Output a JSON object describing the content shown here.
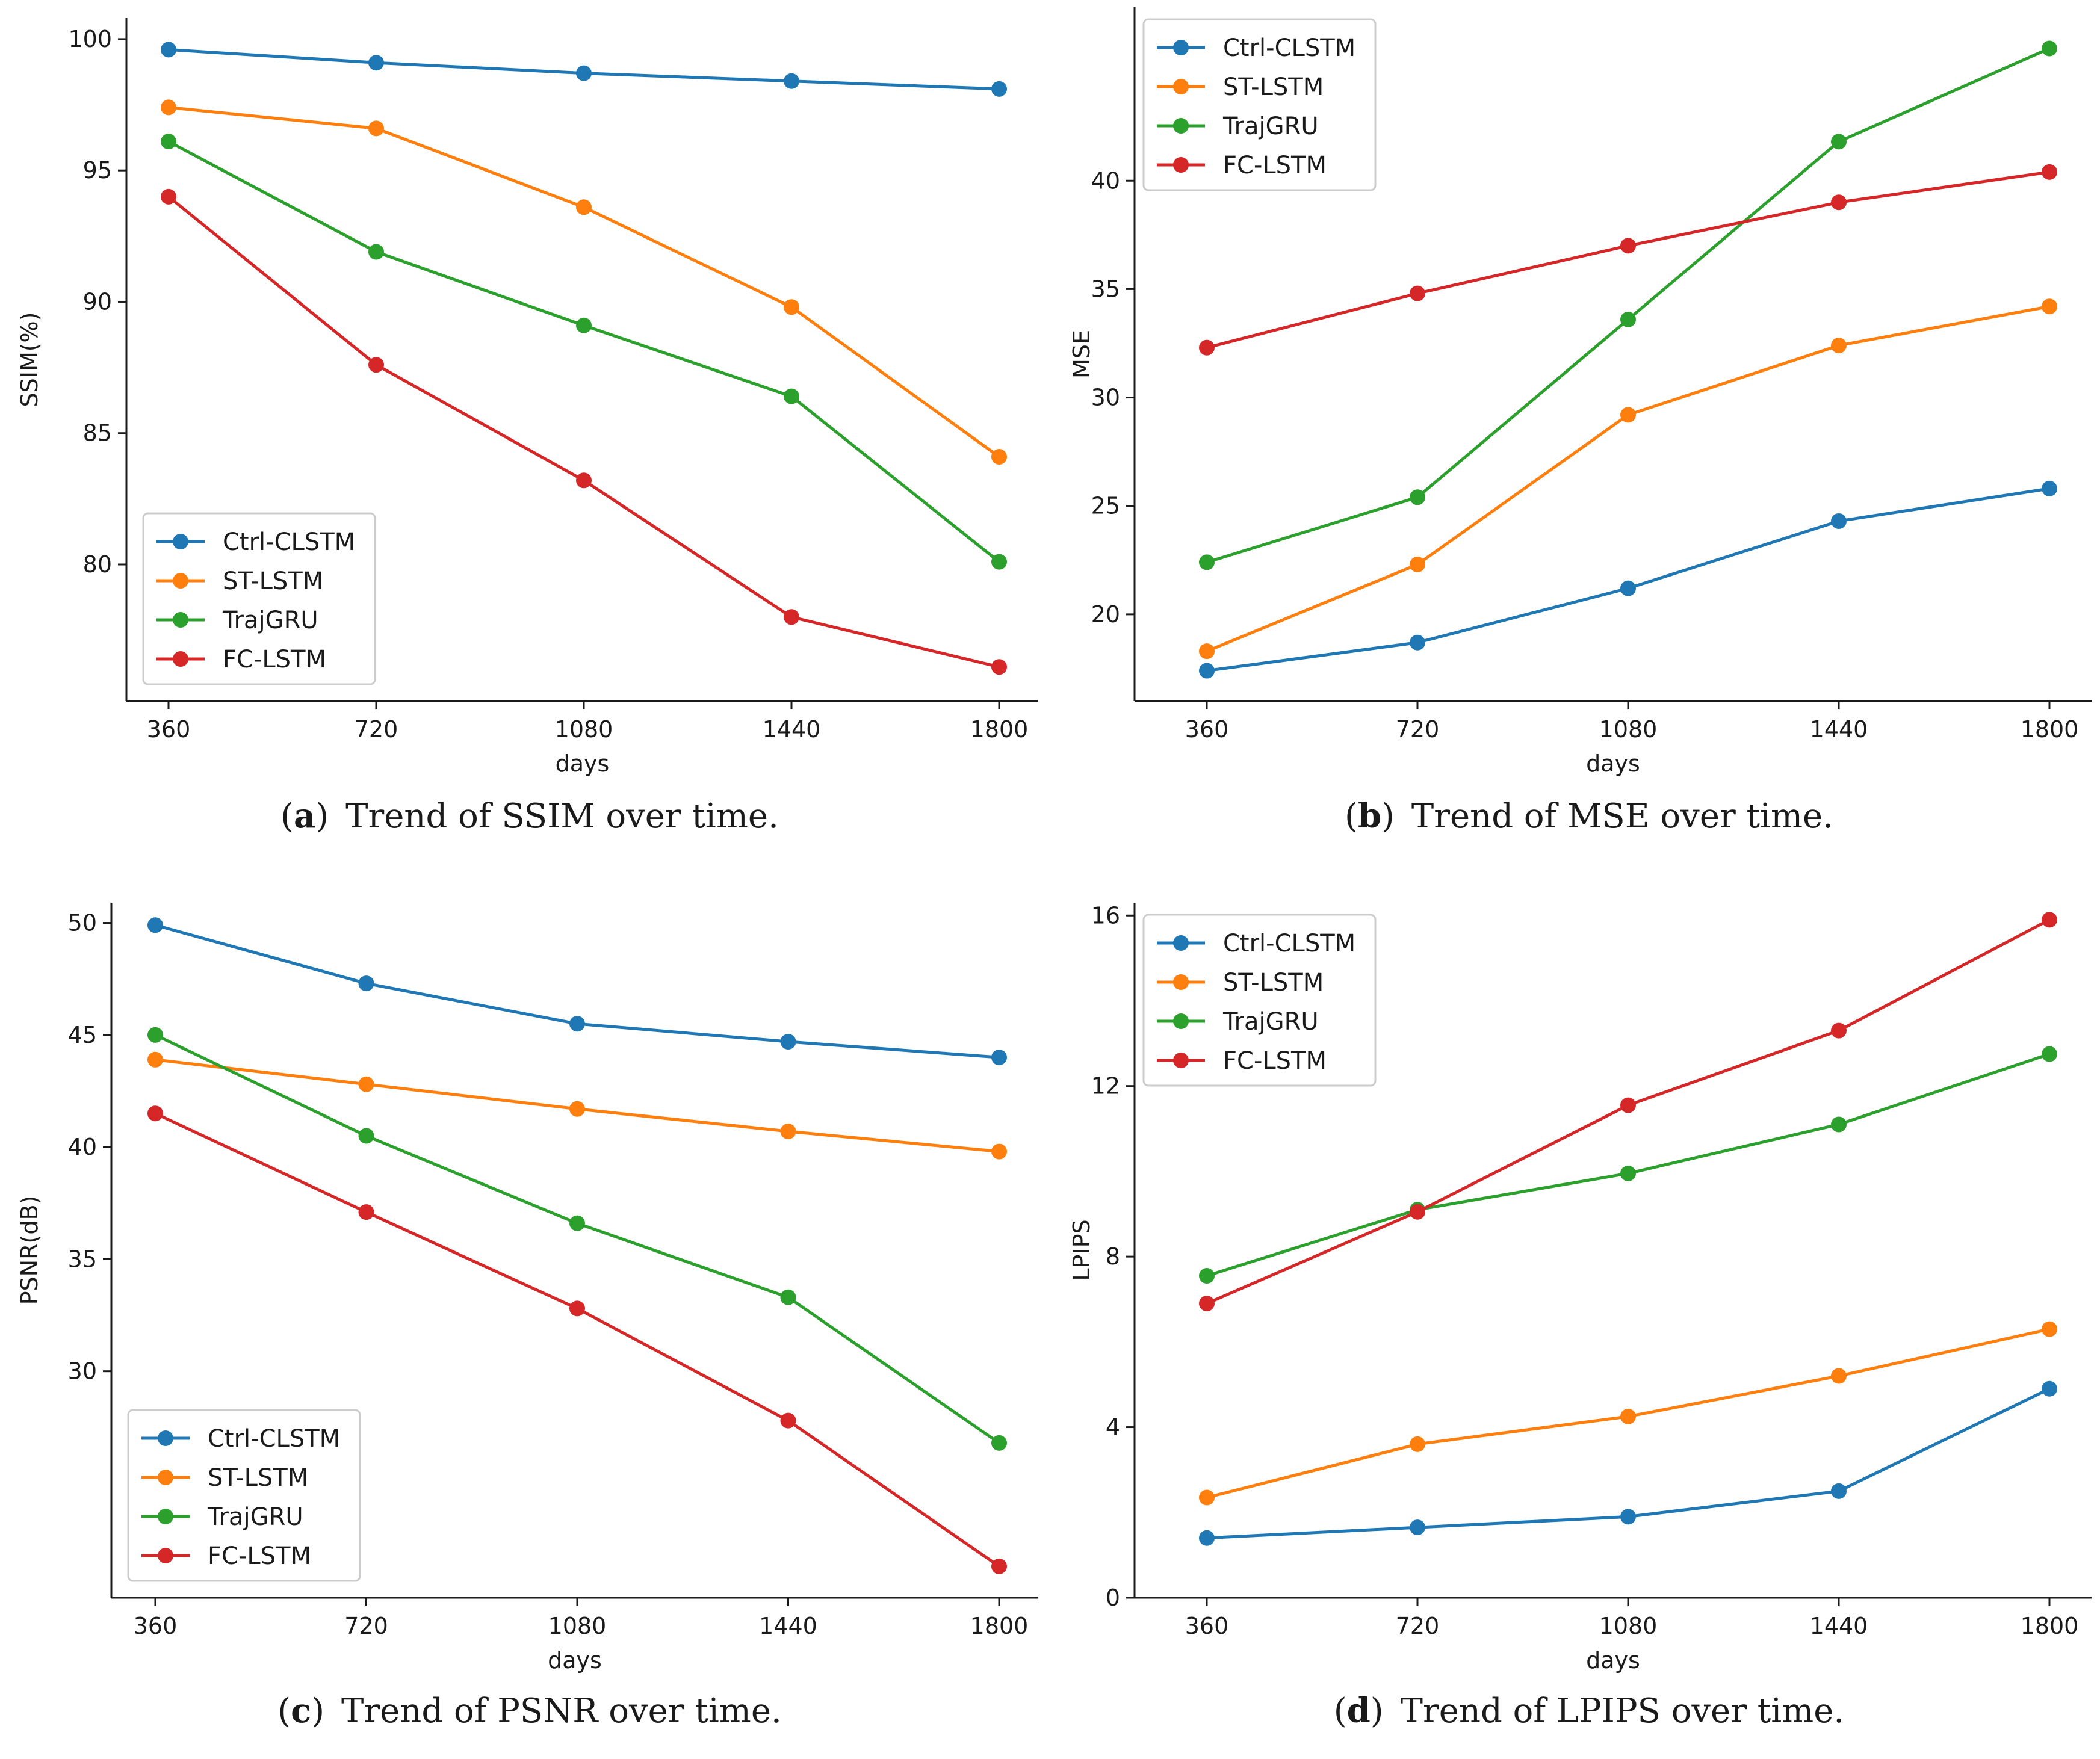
{
  "figure": {
    "series_colors": {
      "Ctrl-CLSTM": "#1f77b4",
      "ST-LSTM": "#ff7f0e",
      "TrajGRU": "#2ca02c",
      "FC-LSTM": "#d62728"
    }
  },
  "chart_data": [
    {
      "id": "a",
      "type": "line",
      "caption_label": "a",
      "caption_text": "Trend of SSIM over time.",
      "xlabel": "days",
      "ylabel": "SSIM(%)",
      "categories": [
        "360",
        "720",
        "1080",
        "1440",
        "1800"
      ],
      "yticks": [
        80,
        85,
        90,
        95,
        100
      ],
      "ylim": [
        74.8,
        100.8
      ],
      "legend_position": "lower-left",
      "series": [
        {
          "name": "Ctrl-CLSTM",
          "values": [
            99.6,
            99.1,
            98.7,
            98.4,
            98.1
          ]
        },
        {
          "name": "ST-LSTM",
          "values": [
            97.4,
            96.6,
            93.6,
            89.8,
            84.1
          ]
        },
        {
          "name": "TrajGRU",
          "values": [
            96.1,
            91.9,
            89.1,
            86.4,
            80.1
          ]
        },
        {
          "name": "FC-LSTM",
          "values": [
            94.0,
            87.6,
            83.2,
            78.0,
            76.1
          ]
        }
      ]
    },
    {
      "id": "b",
      "type": "line",
      "caption_label": "b",
      "caption_text": "Trend of MSE over time.",
      "xlabel": "days",
      "ylabel": "MSE",
      "categories": [
        "360",
        "720",
        "1080",
        "1440",
        "1800"
      ],
      "yticks": [
        20,
        25,
        30,
        35,
        40
      ],
      "ylim": [
        16.0,
        48.0
      ],
      "legend_position": "top-left",
      "series": [
        {
          "name": "Ctrl-CLSTM",
          "values": [
            17.4,
            18.7,
            21.2,
            24.3,
            25.8
          ]
        },
        {
          "name": "ST-LSTM",
          "values": [
            18.3,
            22.3,
            29.2,
            32.4,
            34.2
          ]
        },
        {
          "name": "TrajGRU",
          "values": [
            22.4,
            25.4,
            33.6,
            41.8,
            46.1
          ]
        },
        {
          "name": "FC-LSTM",
          "values": [
            32.3,
            34.8,
            37.0,
            39.0,
            40.4
          ]
        }
      ]
    },
    {
      "id": "c",
      "type": "line",
      "caption_label": "c",
      "caption_text": "Trend of PSNR over time.",
      "xlabel": "days",
      "ylabel": "PSNR(dB)",
      "categories": [
        "360",
        "720",
        "1080",
        "1440",
        "1800"
      ],
      "yticks": [
        30,
        35,
        40,
        45,
        50
      ],
      "ylim": [
        19.9,
        50.9
      ],
      "legend_position": "lower-left",
      "series": [
        {
          "name": "Ctrl-CLSTM",
          "values": [
            49.9,
            47.3,
            45.5,
            44.7,
            44.0
          ]
        },
        {
          "name": "ST-LSTM",
          "values": [
            43.9,
            42.8,
            41.7,
            40.7,
            39.8
          ]
        },
        {
          "name": "TrajGRU",
          "values": [
            45.0,
            40.5,
            36.6,
            33.3,
            26.8
          ]
        },
        {
          "name": "FC-LSTM",
          "values": [
            41.5,
            37.1,
            32.8,
            27.8,
            21.3
          ]
        }
      ]
    },
    {
      "id": "d",
      "type": "line",
      "caption_label": "d",
      "caption_text": "Trend of LPIPS over time.",
      "xlabel": "days",
      "ylabel": "LPIPS",
      "categories": [
        "360",
        "720",
        "1080",
        "1440",
        "1800"
      ],
      "yticks": [
        0,
        4,
        8,
        12,
        16
      ],
      "ylim": [
        0,
        16.3
      ],
      "legend_position": "top-left",
      "series": [
        {
          "name": "Ctrl-CLSTM",
          "values": [
            1.4,
            1.65,
            1.9,
            2.5,
            4.9
          ]
        },
        {
          "name": "ST-LSTM",
          "values": [
            2.35,
            3.6,
            4.25,
            5.2,
            6.3
          ]
        },
        {
          "name": "TrajGRU",
          "values": [
            7.55,
            9.1,
            9.95,
            11.1,
            12.75
          ]
        },
        {
          "name": "FC-LSTM",
          "values": [
            6.9,
            9.05,
            11.55,
            13.3,
            15.9
          ]
        }
      ]
    }
  ]
}
